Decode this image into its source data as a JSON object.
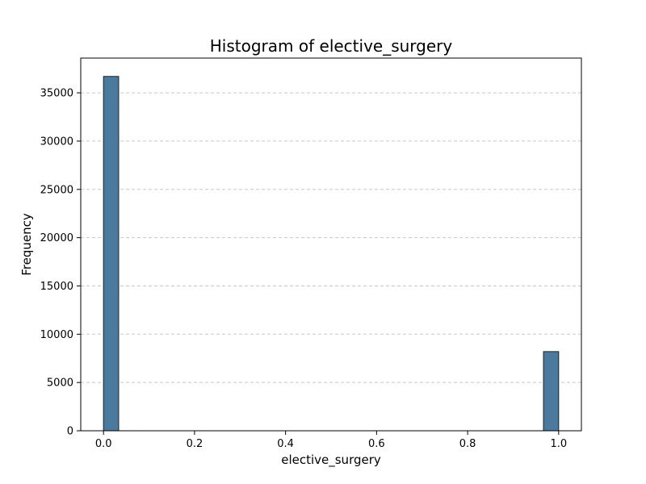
{
  "chart_data": {
    "type": "bar",
    "title": "Histogram of elective_surgery",
    "xlabel": "elective_surgery",
    "ylabel": "Frequency",
    "bins": [
      {
        "x_start": 0.0,
        "x_end": 0.0333,
        "count": 36700
      },
      {
        "x_start": 0.9667,
        "x_end": 1.0,
        "count": 8200
      }
    ],
    "xlim": [
      -0.05,
      1.05
    ],
    "ylim": [
      0,
      38600
    ],
    "x_ticks": [
      0.0,
      0.2,
      0.4,
      0.6,
      0.8,
      1.0
    ],
    "x_tick_labels": [
      "0.0",
      "0.2",
      "0.4",
      "0.6",
      "0.8",
      "1.0"
    ],
    "y_ticks": [
      0,
      5000,
      10000,
      15000,
      20000,
      25000,
      30000,
      35000
    ],
    "y_tick_labels": [
      "0",
      "5000",
      "10000",
      "15000",
      "20000",
      "25000",
      "30000",
      "35000"
    ],
    "grid": {
      "y": true,
      "x": false,
      "style": "dashed"
    },
    "bar_color": "#4a7a9d",
    "edge_color": "#222222"
  }
}
